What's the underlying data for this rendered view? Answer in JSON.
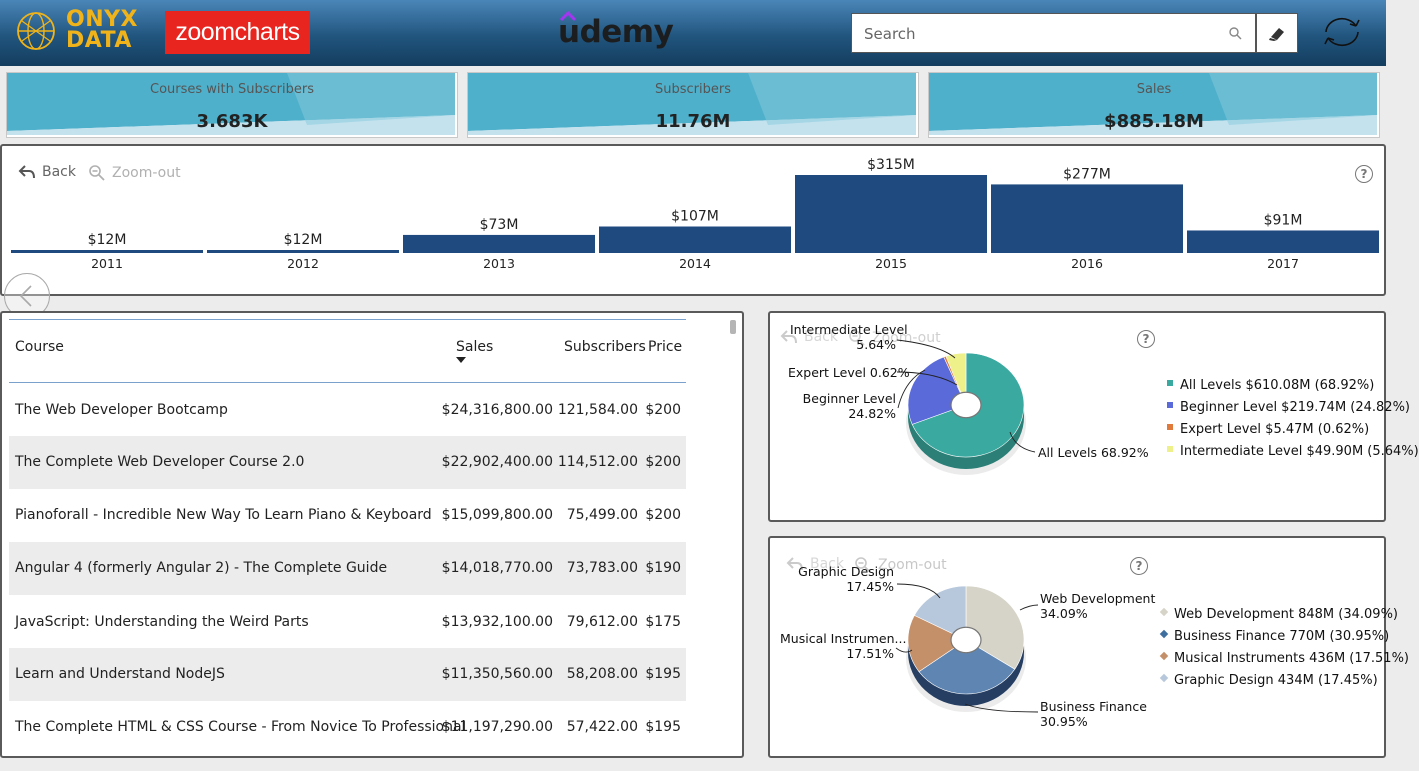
{
  "header": {
    "onyx_line1": "ONYX",
    "onyx_line2": "DATA",
    "zoomcharts": "zoomcharts",
    "udemy": "udemy",
    "search_placeholder": "Search"
  },
  "kpis": [
    {
      "label": "Courses with Subscribers",
      "value": "3.683K"
    },
    {
      "label": "Subscribers",
      "value": "11.76M"
    },
    {
      "label": "Sales",
      "value": "$885.18M"
    }
  ],
  "controls": {
    "back": "Back",
    "zoom_out": "Zoom-out",
    "help": "?"
  },
  "chart_data": [
    {
      "type": "bar",
      "categories": [
        "2011",
        "2012",
        "2013",
        "2014",
        "2015",
        "2016",
        "2017"
      ],
      "values": [
        12,
        12,
        73,
        107,
        315,
        277,
        91
      ],
      "data_labels": [
        "$12M",
        "$12M",
        "$73M",
        "$107M",
        "$315M",
        "$277M",
        "$91M"
      ],
      "title": "",
      "xlabel": "",
      "ylabel": "",
      "color": "#1f4a80"
    },
    {
      "type": "pie",
      "categories": [
        "All Levels",
        "Beginner Level",
        "Expert Level",
        "Intermediate Level"
      ],
      "values": [
        68.92,
        24.82,
        0.62,
        5.64
      ],
      "colors": [
        "#3aa9a0",
        "#5a6ad8",
        "#e07a3c",
        "#eef08a"
      ],
      "slice_labels": [
        {
          "name": "All Levels",
          "pct": "68.92%"
        },
        {
          "name": "Beginner Level",
          "pct": "24.82%"
        },
        {
          "name": "Expert Level",
          "pct": "0.62%"
        },
        {
          "name": "Intermediate Level",
          "pct": "5.64%"
        }
      ],
      "legend": [
        "All Levels $610.08M (68.92%)",
        "Beginner Level $219.74M (24.82%)",
        "Expert Level $5.47M (0.62%)",
        "Intermediate Level $49.90M (5.64%)"
      ]
    },
    {
      "type": "pie",
      "categories": [
        "Web Development",
        "Business Finance",
        "Musical Instruments",
        "Graphic Design"
      ],
      "values": [
        34.09,
        30.95,
        17.51,
        17.45
      ],
      "colors": [
        "#d6d4c8",
        "#5f86b3",
        "#c4906a",
        "#b8c8dc"
      ],
      "slice_labels": [
        {
          "name": "Web Development",
          "pct": "34.09%"
        },
        {
          "name": "Business Finance",
          "pct": "30.95%"
        },
        {
          "name": "Musical Instrumen...",
          "pct": "17.51%"
        },
        {
          "name": "Graphic Design",
          "pct": "17.45%"
        }
      ],
      "legend": [
        "Web Development 848M (34.09%)",
        "Business Finance 770M (30.95%)",
        "Musical Instruments 436M (17.51%)",
        "Graphic Design 434M (17.45%)"
      ]
    }
  ],
  "table": {
    "headers": {
      "course": "Course",
      "sales": "Sales",
      "subscribers": "Subscribers",
      "price": "Price"
    },
    "rows": [
      {
        "course": "The Web Developer Bootcamp",
        "sales": "$24,316,800.00",
        "subscribers": "121,584.00",
        "price": "$200"
      },
      {
        "course": "The Complete Web Developer Course 2.0",
        "sales": "$22,902,400.00",
        "subscribers": "114,512.00",
        "price": "$200"
      },
      {
        "course": "Pianoforall - Incredible New Way To Learn Piano & Keyboard",
        "sales": "$15,099,800.00",
        "subscribers": "75,499.00",
        "price": "$200"
      },
      {
        "course": "Angular 4 (formerly Angular 2) - The Complete Guide",
        "sales": "$14,018,770.00",
        "subscribers": "73,783.00",
        "price": "$190"
      },
      {
        "course": "JavaScript: Understanding the Weird Parts",
        "sales": "$13,932,100.00",
        "subscribers": "79,612.00",
        "price": "$175"
      },
      {
        "course": "Learn and Understand NodeJS",
        "sales": "$11,350,560.00",
        "subscribers": "58,208.00",
        "price": "$195"
      },
      {
        "course": "The Complete HTML & CSS Course - From Novice To Professional",
        "sales": "$11,197,290.00",
        "subscribers": "57,422.00",
        "price": "$195"
      }
    ]
  }
}
